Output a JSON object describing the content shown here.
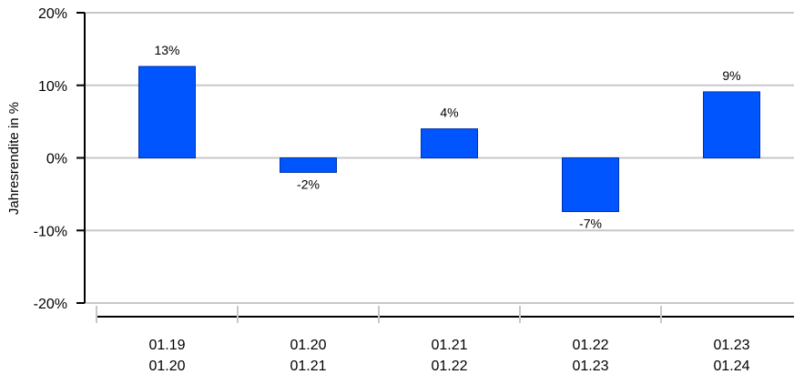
{
  "chart_data": {
    "type": "bar",
    "categories": [
      {
        "line1": "01.19",
        "line2": "01.20"
      },
      {
        "line1": "01.20",
        "line2": "01.21"
      },
      {
        "line1": "01.21",
        "line2": "01.22"
      },
      {
        "line1": "01.22",
        "line2": "01.23"
      },
      {
        "line1": "01.23",
        "line2": "01.24"
      }
    ],
    "values": [
      12.6,
      -2.0,
      4.0,
      -7.4,
      9.1
    ],
    "value_labels": [
      "13%",
      "-2%",
      "4%",
      "-7%",
      "9%"
    ],
    "ylabel": "Jahresrendite in %",
    "ylim": [
      -20,
      20
    ],
    "yticks": [
      {
        "value": 20,
        "label": "20%"
      },
      {
        "value": 10,
        "label": "10%"
      },
      {
        "value": 0,
        "label": "0%"
      },
      {
        "value": -10,
        "label": "-10%"
      },
      {
        "value": -20,
        "label": "-20%"
      }
    ],
    "grid": true,
    "bar_color": "#0055ff",
    "bar_edge_color": "#0033aa",
    "grid_color": "#c8c8c8"
  }
}
